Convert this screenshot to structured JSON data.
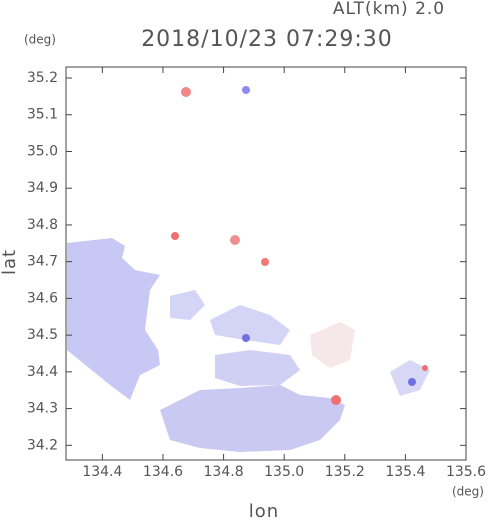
{
  "chart_data": {
    "type": "map",
    "title": "2018/10/23 07:29:30",
    "subtitle": "ALT(km) 2.0",
    "x_label": "lon",
    "y_label": "lat",
    "x_unit": "(deg)",
    "y_unit": "(deg)",
    "xlim": [
      134.28,
      135.6
    ],
    "ylim": [
      34.16,
      35.23
    ],
    "xticks": [
      134.4,
      134.6,
      134.8,
      135.0,
      135.2,
      135.4,
      135.6
    ],
    "yticks": [
      34.2,
      34.3,
      34.4,
      34.5,
      34.6,
      34.7,
      34.8,
      34.9,
      35.0,
      35.1,
      35.2
    ]
  }
}
